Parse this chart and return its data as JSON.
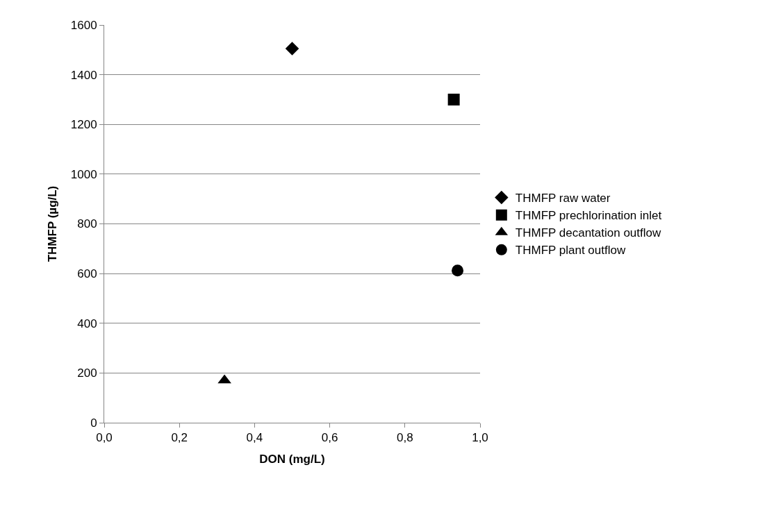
{
  "chart_data": {
    "type": "scatter",
    "xlabel": "DON (mg/L)",
    "ylabel": "THMFP (µg/L)",
    "series": [
      {
        "name": "THMFP raw water",
        "color": "#000000",
        "marker": "diamond",
        "x": [
          0.5
        ],
        "values": [
          1505
        ]
      },
      {
        "name": "THMFP prechlorination inlet",
        "color": "#000000",
        "marker": "square",
        "x": [
          0.93
        ],
        "values": [
          1300
        ]
      },
      {
        "name": "THMFP decantation outflow",
        "color": "#000000",
        "marker": "triangle",
        "x": [
          0.32
        ],
        "values": [
          170
        ]
      },
      {
        "name": "THMFP plant outflow",
        "color": "#000000",
        "marker": "circle",
        "x": [
          0.94
        ],
        "values": [
          612
        ]
      }
    ],
    "xlim": [
      0,
      1
    ],
    "ylim": [
      0,
      1600
    ],
    "xticks": [
      {
        "value": 0,
        "label": "0,0"
      },
      {
        "value": 0.2,
        "label": "0,2"
      },
      {
        "value": 0.4,
        "label": "0,4"
      },
      {
        "value": 0.6,
        "label": "0,6"
      },
      {
        "value": 0.8,
        "label": "0,8"
      },
      {
        "value": 1,
        "label": "1,0"
      }
    ],
    "yticks": [
      0,
      200,
      400,
      600,
      800,
      1000,
      1200,
      1400,
      1600
    ],
    "grid": "y",
    "legend": "right"
  }
}
